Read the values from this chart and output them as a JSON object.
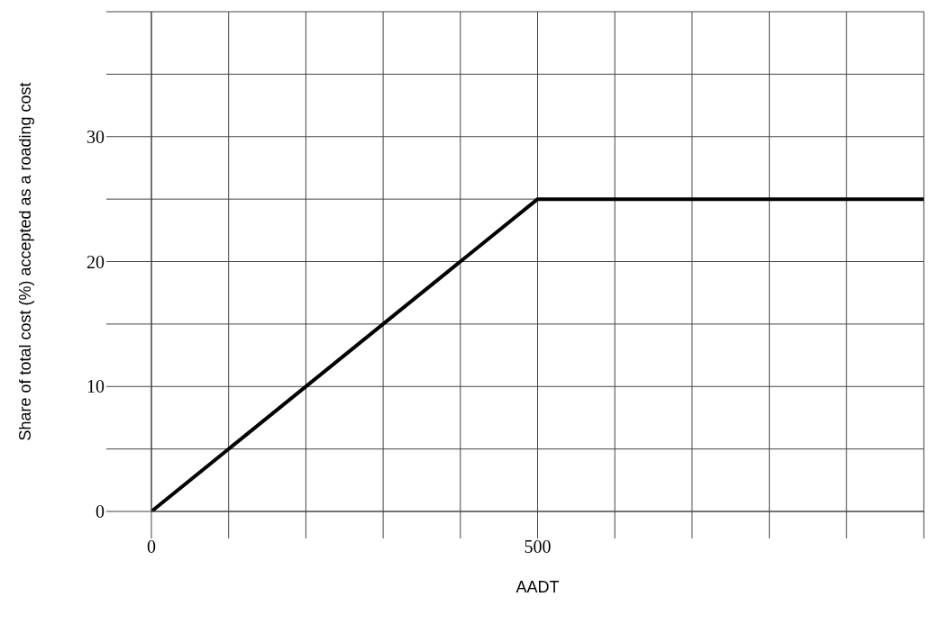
{
  "chart_data": {
    "type": "line",
    "xlabel": "AADT",
    "ylabel": "Share of total cost (%) accepted as a roading cost",
    "x": [
      0,
      500,
      1000
    ],
    "series": [
      {
        "color": "#000000",
        "values": [
          0,
          25,
          25
        ]
      }
    ],
    "xlim": [
      0,
      1000
    ],
    "xticks": [
      0,
      {
        "value": 100,
        "label": null
      },
      {
        "value": 200,
        "label": null
      },
      {
        "value": 300,
        "label": null
      },
      {
        "value": 400,
        "label": null
      },
      500,
      {
        "value": 600,
        "label": null
      },
      {
        "value": 700,
        "label": null
      },
      {
        "value": 800,
        "label": null
      },
      {
        "value": 900,
        "label": null
      },
      {
        "value": 1000,
        "label": null
      }
    ],
    "ylim": [
      0,
      40
    ],
    "yticks": [
      0,
      {
        "value": 5,
        "label": null
      },
      10,
      {
        "value": 15,
        "label": null
      },
      20,
      {
        "value": 25,
        "label": null
      },
      30,
      {
        "value": 35,
        "label": null
      },
      {
        "value": 40,
        "label": null
      }
    ],
    "grid": true,
    "marker": "none",
    "line_style": "solid"
  }
}
